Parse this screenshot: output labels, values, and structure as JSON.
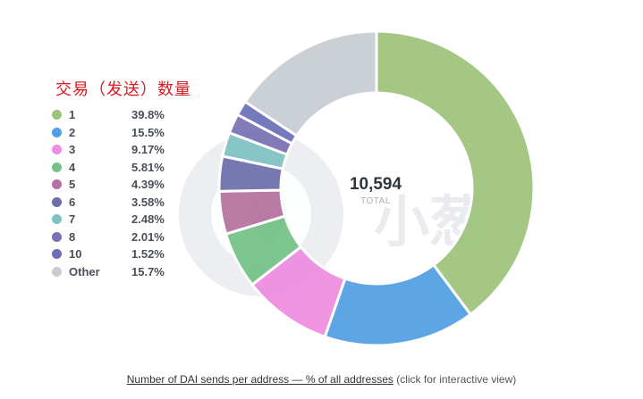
{
  "chart_data": {
    "type": "pie",
    "title": "交易（发送）数量",
    "categories": [
      "1",
      "2",
      "3",
      "4",
      "5",
      "6",
      "7",
      "8",
      "10",
      "Other"
    ],
    "values": [
      39.8,
      15.5,
      9.17,
      5.81,
      4.39,
      3.58,
      2.48,
      2.01,
      1.52,
      15.7
    ],
    "value_labels": [
      "39.8%",
      "15.5%",
      "9.17%",
      "5.81%",
      "4.39%",
      "3.58%",
      "2.48%",
      "2.01%",
      "1.52%",
      "15.7%"
    ],
    "colors": [
      "#9dc37a",
      "#509ee3",
      "#ef8ce0",
      "#74c286",
      "#b5709e",
      "#6c6fac",
      "#7fc2c4",
      "#7a70b4",
      "#6a6fb8",
      "#c7ccd3"
    ],
    "total_value": "10,594",
    "total_label": "TOTAL",
    "legend_position": "left",
    "donut": true
  },
  "caption": {
    "link_text": "Number of DAI sends per address — % of all addresses",
    "note": "(click for interactive view)"
  }
}
